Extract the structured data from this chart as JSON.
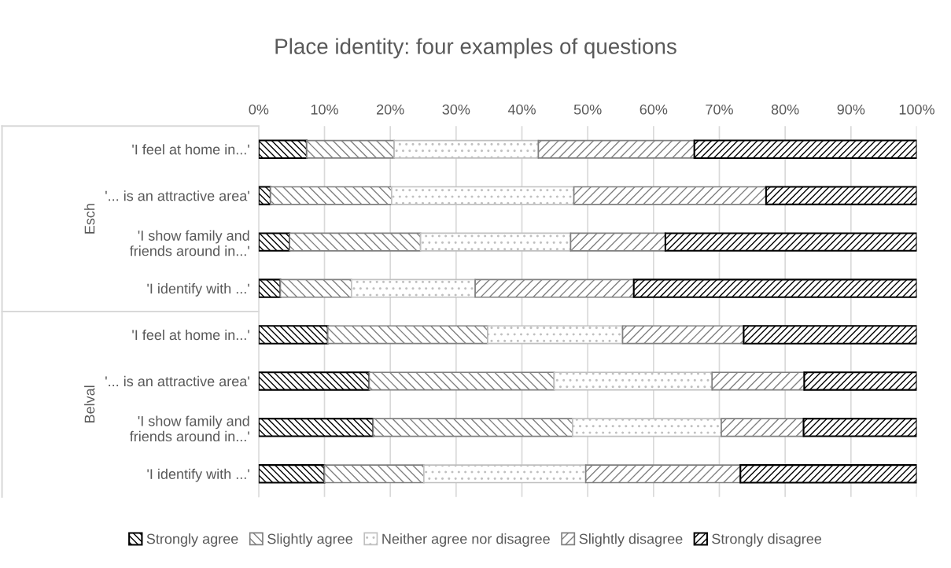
{
  "chart_data": {
    "type": "bar",
    "orientation": "horizontal",
    "stacked": true,
    "title": "Place identity: four examples of questions",
    "categories": [
      "'I feel at home in...'",
      "'... is an attractive area'",
      "'I show family and\nfriends around in...'",
      "'I identify with ...'",
      "'I feel at home in...'",
      "'... is an attractive area'",
      "'I show family and\nfriends around in...'",
      "'I identify with ...'"
    ],
    "series": [
      {
        "name": "Strongly agree",
        "color": "#000000",
        "values": [
          7.3,
          1.8,
          4.7,
          3.3,
          10.5,
          16.8,
          17.4,
          10.0
        ]
      },
      {
        "name": "Slightly agree",
        "color": "#808080",
        "values": [
          13.3,
          18.4,
          19.9,
          10.8,
          24.3,
          28.1,
          30.3,
          15.1
        ]
      },
      {
        "name": "Neither agree nor disagree",
        "color": "#c0c0c0",
        "values": [
          21.9,
          27.7,
          22.8,
          18.8,
          20.5,
          24.0,
          22.6,
          24.6
        ]
      },
      {
        "name": "Slightly disagree",
        "color": "#808080",
        "values": [
          23.7,
          29.2,
          14.4,
          24.1,
          18.4,
          14.0,
          12.5,
          23.5
        ]
      },
      {
        "name": "Strongly disagree",
        "color": "#000000",
        "values": [
          33.8,
          22.9,
          38.2,
          43.0,
          26.3,
          17.1,
          17.2,
          26.8
        ]
      }
    ],
    "annotations": [
      "Esch",
      "Belval"
    ],
    "xlim": [
      0,
      100
    ],
    "xticks": [
      {
        "value": 0,
        "label": "0%"
      },
      {
        "value": 10,
        "label": "10%"
      },
      {
        "value": 20,
        "label": "20%"
      },
      {
        "value": 30,
        "label": "30%"
      },
      {
        "value": 40,
        "label": "40%"
      },
      {
        "value": 50,
        "label": "50%"
      },
      {
        "value": 60,
        "label": "60%"
      },
      {
        "value": 70,
        "label": "70%"
      },
      {
        "value": 80,
        "label": "80%"
      },
      {
        "value": 90,
        "label": "90%"
      },
      {
        "value": 100,
        "label": "100%"
      }
    ],
    "grid": "x",
    "legend": "bottom"
  }
}
